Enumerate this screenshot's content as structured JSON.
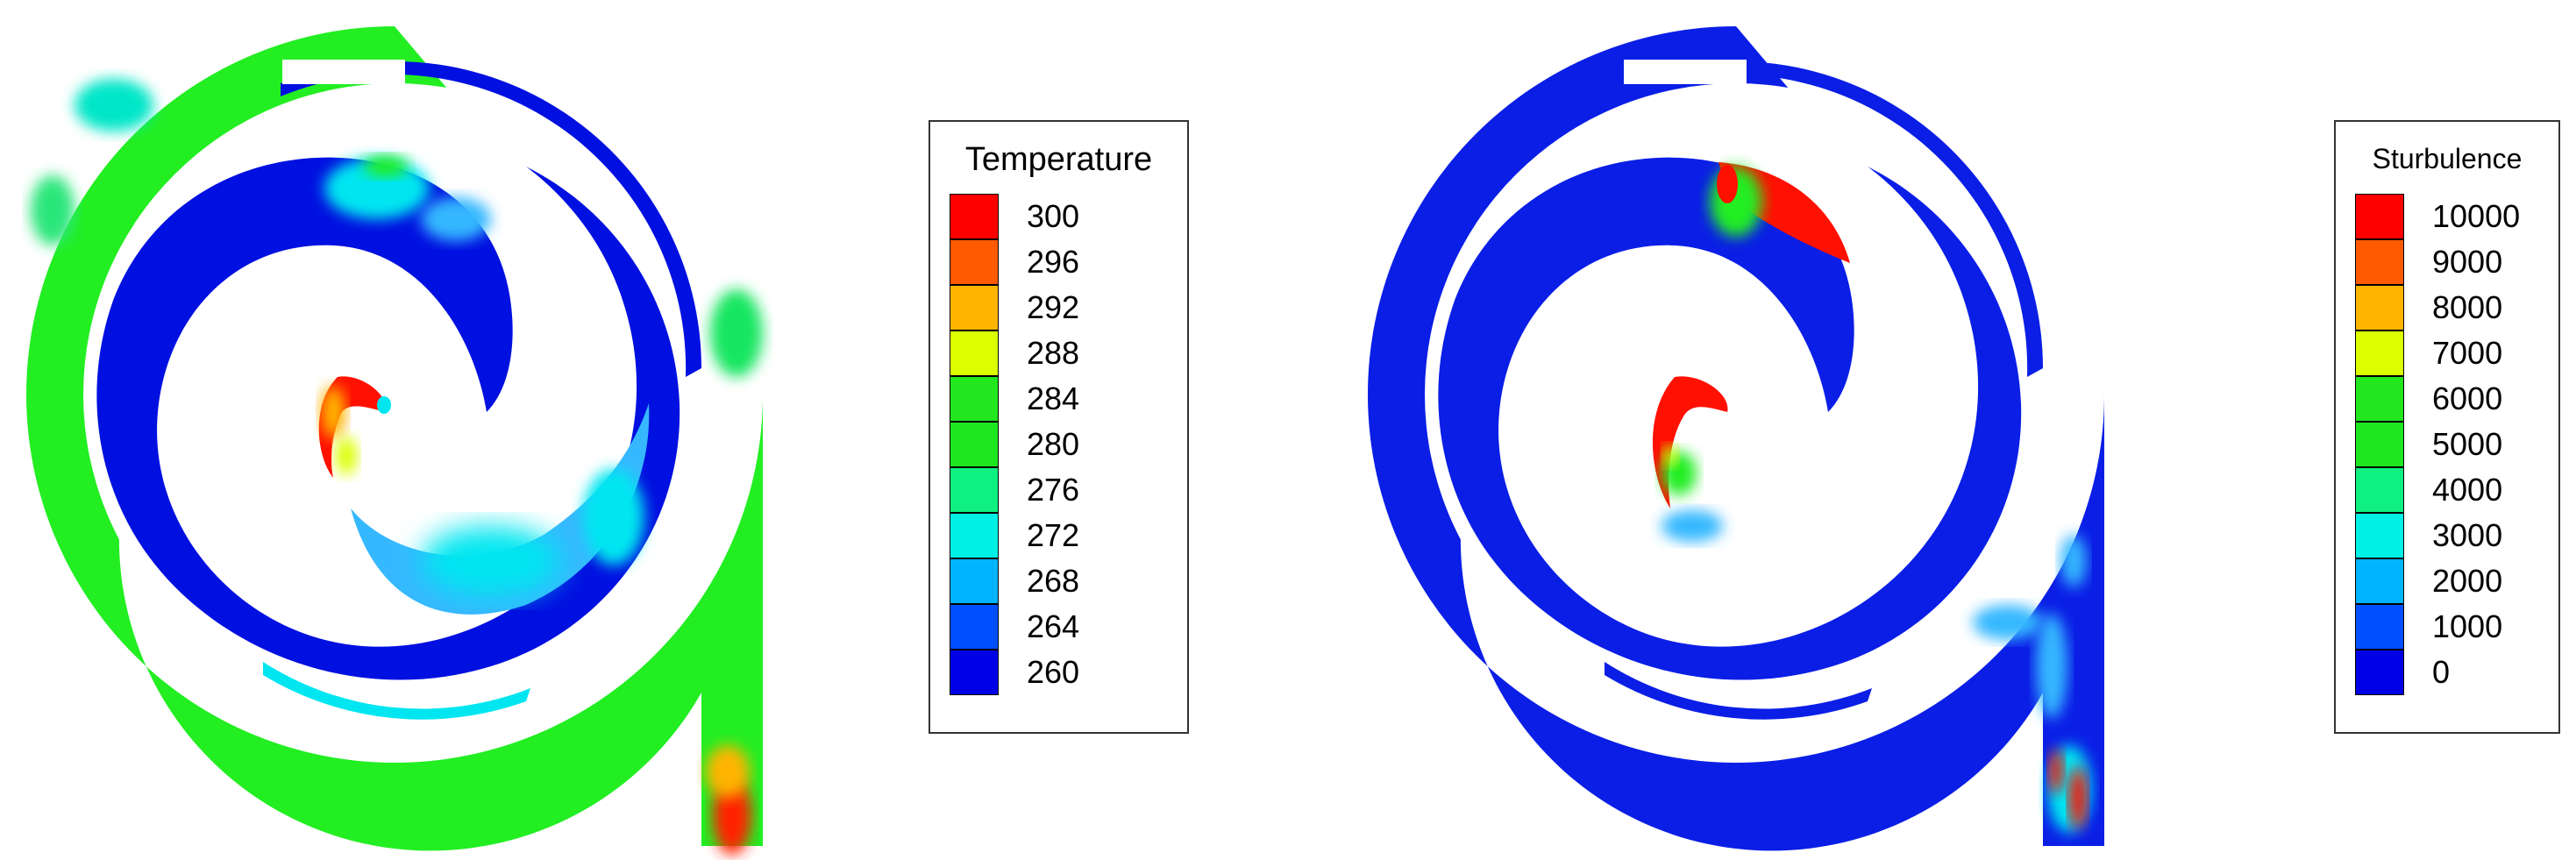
{
  "panels": [
    {
      "id": "temperature",
      "legend": {
        "title": "Temperature",
        "levels": [
          "300",
          "296",
          "292",
          "288",
          "284",
          "280",
          "276",
          "272",
          "268",
          "264",
          "260"
        ],
        "colors": [
          "#ff0000",
          "#ff5a00",
          "#ffb400",
          "#dcff00",
          "#22e61e",
          "#1ee61e",
          "#0ef080",
          "#00f0e6",
          "#00b4ff",
          "#0050ff",
          "#0000e6"
        ]
      }
    },
    {
      "id": "sturbulence",
      "legend": {
        "title": "Sturbulence",
        "levels": [
          "10000",
          "9000",
          "8000",
          "7000",
          "6000",
          "5000",
          "4000",
          "3000",
          "2000",
          "1000",
          "0"
        ],
        "colors": [
          "#ff0000",
          "#ff5a00",
          "#ffb400",
          "#dcff00",
          "#22e61e",
          "#1ee61e",
          "#0ef080",
          "#00f0e6",
          "#00b4ff",
          "#0050ff",
          "#0000e6"
        ]
      }
    }
  ],
  "colors": {
    "temperature_base": "#22ee22",
    "cold": "#0010e0",
    "hot": "#ff1000",
    "cyan": "#00e6f0",
    "light_blue": "#36b8ff",
    "turbulence_base": "#0a1ee6"
  }
}
